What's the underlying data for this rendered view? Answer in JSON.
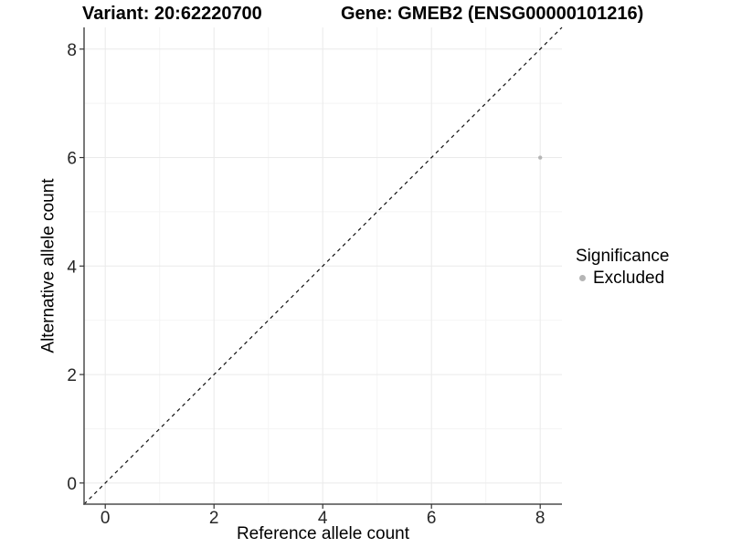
{
  "chart_data": {
    "type": "scatter",
    "titles": {
      "left": "Variant: 20:62220700",
      "right": "Gene: GMEB2 (ENSG00000101216)"
    },
    "xlabel": "Reference allele count",
    "ylabel": "Alternative allele count",
    "xlim": [
      -0.39,
      8.4
    ],
    "ylim": [
      -0.39,
      8.4
    ],
    "xticks": [
      0,
      2,
      4,
      6,
      8
    ],
    "yticks": [
      0,
      2,
      4,
      6,
      8
    ],
    "xticks_minor": [
      1,
      3,
      5,
      7
    ],
    "yticks_minor": [
      1,
      3,
      5,
      7
    ],
    "grid": "major+minor",
    "identity_line": {
      "style": "dashed",
      "equation": "y = x",
      "color": "#111111"
    },
    "series": [
      {
        "name": "Excluded",
        "color": "#b5b5b5",
        "point_radius": 2.2,
        "points": [
          {
            "x": 8,
            "y": 6
          }
        ]
      }
    ],
    "legend": {
      "title": "Significance",
      "position": "right",
      "items": [
        {
          "label": "Excluded",
          "color": "#b5b5b5"
        }
      ]
    },
    "style_colors": {
      "background": "#ffffff",
      "grid_major": "#eaeaea",
      "grid_minor": "#f4f4f4",
      "axis_line": "#4d4d4d",
      "tick_mark": "#333333",
      "tick_label": "#262626"
    }
  }
}
